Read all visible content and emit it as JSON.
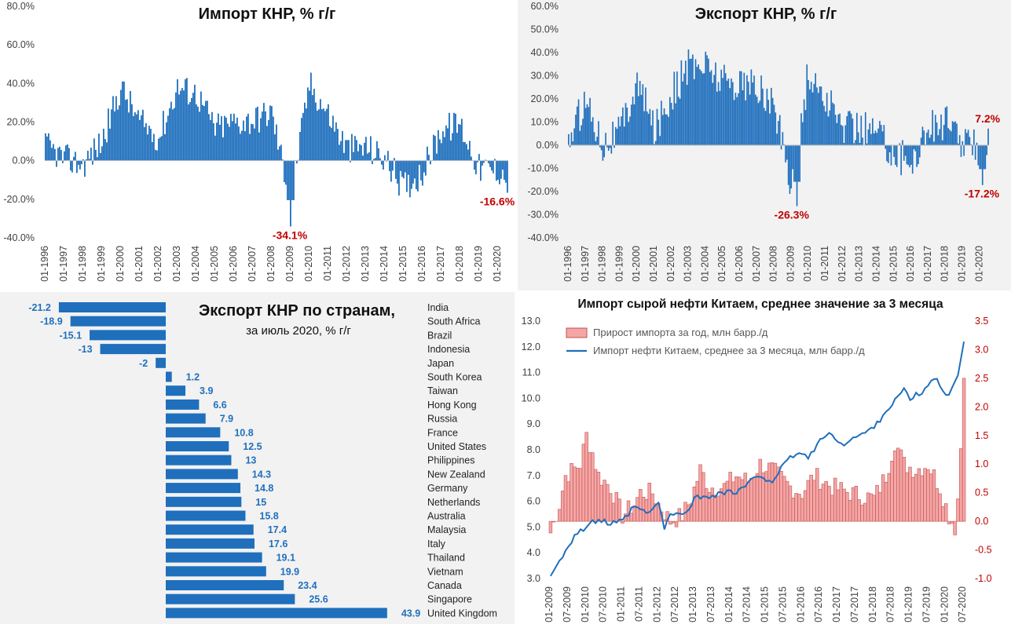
{
  "colors": {
    "bar_blue": "#1f6fbd",
    "neg_label_red": "#c00000",
    "oil_bar_fill": "#f4a6a6",
    "oil_bar_stroke": "#c0504d",
    "oil_line": "#1f6fbd",
    "axis_text": "#404040",
    "right_axis_text": "#c00000",
    "bar_value_text": "#1f6fbd",
    "panel_bg": "#f2f2f2"
  },
  "chart_data": [
    {
      "id": "imports",
      "type": "bar",
      "title": "Импорт КНР, % г/г",
      "ylim": [
        -40,
        80
      ],
      "y_ticks": [
        "-40.0%",
        "-20.0%",
        "0.0%",
        "20.0%",
        "40.0%",
        "60.0%",
        "80.0%"
      ],
      "x_tick_labels": [
        "01-1996",
        "01-1997",
        "01-1998",
        "01-1999",
        "01-2000",
        "01-2001",
        "01-2002",
        "01-2003",
        "01-2004",
        "01-2005",
        "01-2006",
        "01-2007",
        "01-2008",
        "01-2009",
        "01-2010",
        "01-2011",
        "01-2012",
        "01-2013",
        "01-2014",
        "01-2015",
        "01-2016",
        "01-2017",
        "01-2018",
        "01-2019",
        "01-2020"
      ],
      "start": "01-1996",
      "annual_levels": [
        8,
        1,
        -2,
        10,
        38,
        20,
        12,
        38,
        35,
        17,
        20,
        21,
        25,
        -20,
        40,
        24,
        6,
        7,
        1,
        -14,
        -6,
        16,
        19,
        -4,
        -5
      ],
      "annotations": [
        {
          "text": "-34.1%",
          "x": "01-2009",
          "y": -34.1
        },
        {
          "text": "-16.6%",
          "x": "07-2020",
          "y": -16.6
        }
      ]
    },
    {
      "id": "exports",
      "type": "bar",
      "title": "Экспорт КНР, % г/г",
      "ylim": [
        -40,
        60
      ],
      "y_ticks": [
        "-40.0%",
        "-30.0%",
        "-20.0%",
        "-10.0%",
        "0.0%",
        "10.0%",
        "20.0%",
        "30.0%",
        "40.0%",
        "50.0%",
        "60.0%"
      ],
      "x_tick_labels": [
        "01-1996",
        "01-1997",
        "01-1998",
        "01-1999",
        "01-2000",
        "01-2001",
        "01-2002",
        "01-2003",
        "01-2004",
        "01-2005",
        "01-2006",
        "01-2007",
        "01-2008",
        "01-2009",
        "01-2010",
        "01-2011",
        "01-2012",
        "01-2013",
        "01-2014",
        "01-2015",
        "01-2016",
        "01-2017",
        "01-2018",
        "01-2019",
        "01-2020"
      ],
      "start": "01-1996",
      "annual_levels": [
        2,
        20,
        1,
        6,
        27,
        7,
        22,
        34,
        35,
        28,
        27,
        25,
        17,
        -16,
        31,
        20,
        8,
        8,
        6,
        -3,
        -8,
        8,
        10,
        1,
        -1
      ],
      "annotations": [
        {
          "text": "-26.3%",
          "x": "05-2009",
          "y": -26.3
        },
        {
          "text": "-17.2%",
          "x": "03-2020",
          "y": -17.2
        },
        {
          "text": "7.2%",
          "x": "07-2020",
          "y": 7.2
        }
      ]
    },
    {
      "id": "countries",
      "type": "bar",
      "orientation": "horizontal",
      "title": "Экспорт КНР по странам,",
      "subtitle": "за июль 2020, % г/г",
      "categories": [
        "India",
        "South Africa",
        "Brazil",
        "Indonesia",
        "Japan",
        "South Korea",
        "Taiwan",
        "Hong Kong",
        "Russia",
        "France",
        "United States",
        "Philippines",
        "New Zealand",
        "Germany",
        "Netherlands",
        "Australia",
        "Malaysia",
        "Italy",
        "Thailand",
        "Vietnam",
        "Canada",
        "Singapore",
        "United Kingdom"
      ],
      "values": [
        -21.2,
        -18.9,
        -15.1,
        -13,
        -2,
        1.2,
        3.9,
        6.6,
        7.9,
        10.8,
        12.5,
        13,
        14.3,
        14.8,
        15,
        15.8,
        17.4,
        17.6,
        19.1,
        19.9,
        23.4,
        25.6,
        43.9
      ],
      "value_labels": [
        "-21.2",
        "-18.9",
        "-15.1",
        "-13",
        "-2",
        "1.2",
        "3.9",
        "6.6",
        "7.9",
        "10.8",
        "12.5",
        "13",
        "14.3",
        "14.8",
        "15",
        "15.8",
        "17.4",
        "17.6",
        "19.1",
        "19.9",
        "23.4",
        "25.6",
        "43.9"
      ]
    },
    {
      "id": "oil",
      "type": "bar+line",
      "title": "Импорт сырой нефти Китаем, среднее значение за 3 месяца",
      "legend": [
        "Прирост импорта за год, млн барр./д",
        "Импорт нефти Китаем, среднее за 3 месяца, млн барр./д"
      ],
      "left_ylim": [
        3.0,
        13.0
      ],
      "left_ticks": [
        "3.0",
        "4.0",
        "5.0",
        "6.0",
        "7.0",
        "8.0",
        "9.0",
        "10.0",
        "11.0",
        "12.0",
        "13.0"
      ],
      "right_ylim": [
        -1.0,
        3.5
      ],
      "right_ticks": [
        "-1.0",
        "-0.5",
        "0.0",
        "0.5",
        "1.0",
        "1.5",
        "2.0",
        "2.5",
        "3.0",
        "3.5"
      ],
      "x_tick_labels": [
        "01-2009",
        "07-2009",
        "01-2010",
        "07-2010",
        "01-2011",
        "07-2011",
        "01-2012",
        "07-2012",
        "01-2013",
        "07-2013",
        "01-2014",
        "07-2014",
        "01-2015",
        "07-2015",
        "01-2016",
        "07-2016",
        "01-2017",
        "07-2017",
        "01-2018",
        "07-2018",
        "01-2019",
        "07-2019",
        "01-2020",
        "07-2020"
      ],
      "yoy_growth_anchors": [
        [
          0,
          -0.2
        ],
        [
          3,
          0.3
        ],
        [
          5,
          0.8
        ],
        [
          10,
          1.0
        ],
        [
          12,
          1.5
        ],
        [
          14,
          1.2
        ],
        [
          16,
          0.8
        ],
        [
          20,
          0.6
        ],
        [
          24,
          0.1
        ],
        [
          28,
          0.3
        ],
        [
          30,
          0.5
        ],
        [
          34,
          0.5
        ],
        [
          36,
          0.3
        ],
        [
          40,
          0.0
        ],
        [
          44,
          0.1
        ],
        [
          47,
          0.4
        ],
        [
          50,
          0.9
        ],
        [
          53,
          0.6
        ],
        [
          58,
          0.6
        ],
        [
          62,
          0.8
        ],
        [
          66,
          0.7
        ],
        [
          70,
          1.0
        ],
        [
          74,
          0.9
        ],
        [
          80,
          0.6
        ],
        [
          84,
          0.5
        ],
        [
          88,
          0.8
        ],
        [
          94,
          0.6
        ],
        [
          100,
          0.5
        ],
        [
          108,
          0.4
        ],
        [
          112,
          0.8
        ],
        [
          115,
          1.4
        ],
        [
          118,
          1.0
        ],
        [
          122,
          0.9
        ],
        [
          126,
          1.0
        ],
        [
          130,
          0.6
        ],
        [
          133,
          0.1
        ],
        [
          135,
          -0.1
        ],
        [
          136,
          0.4
        ],
        [
          137,
          1.3
        ],
        [
          138,
          2.5
        ]
      ],
      "import_level_anchors": [
        [
          0,
          3.1
        ],
        [
          3,
          3.7
        ],
        [
          8,
          4.7
        ],
        [
          12,
          5.0
        ],
        [
          16,
          5.3
        ],
        [
          20,
          5.1
        ],
        [
          24,
          5.2
        ],
        [
          28,
          5.8
        ],
        [
          32,
          5.5
        ],
        [
          36,
          5.9
        ],
        [
          38,
          5.0
        ],
        [
          40,
          5.4
        ],
        [
          42,
          5.6
        ],
        [
          44,
          5.4
        ],
        [
          48,
          6.1
        ],
        [
          52,
          6.2
        ],
        [
          56,
          6.3
        ],
        [
          60,
          6.4
        ],
        [
          62,
          6.3
        ],
        [
          66,
          6.7
        ],
        [
          70,
          7.0
        ],
        [
          74,
          6.8
        ],
        [
          78,
          7.4
        ],
        [
          82,
          7.9
        ],
        [
          86,
          7.7
        ],
        [
          90,
          8.4
        ],
        [
          94,
          8.6
        ],
        [
          98,
          8.2
        ],
        [
          102,
          8.5
        ],
        [
          106,
          8.7
        ],
        [
          110,
          9.2
        ],
        [
          114,
          9.8
        ],
        [
          118,
          10.3
        ],
        [
          120,
          10.0
        ],
        [
          124,
          10.2
        ],
        [
          128,
          10.8
        ],
        [
          132,
          10.2
        ],
        [
          134,
          10.3
        ],
        [
          136,
          10.9
        ],
        [
          138,
          12.2
        ]
      ]
    }
  ]
}
